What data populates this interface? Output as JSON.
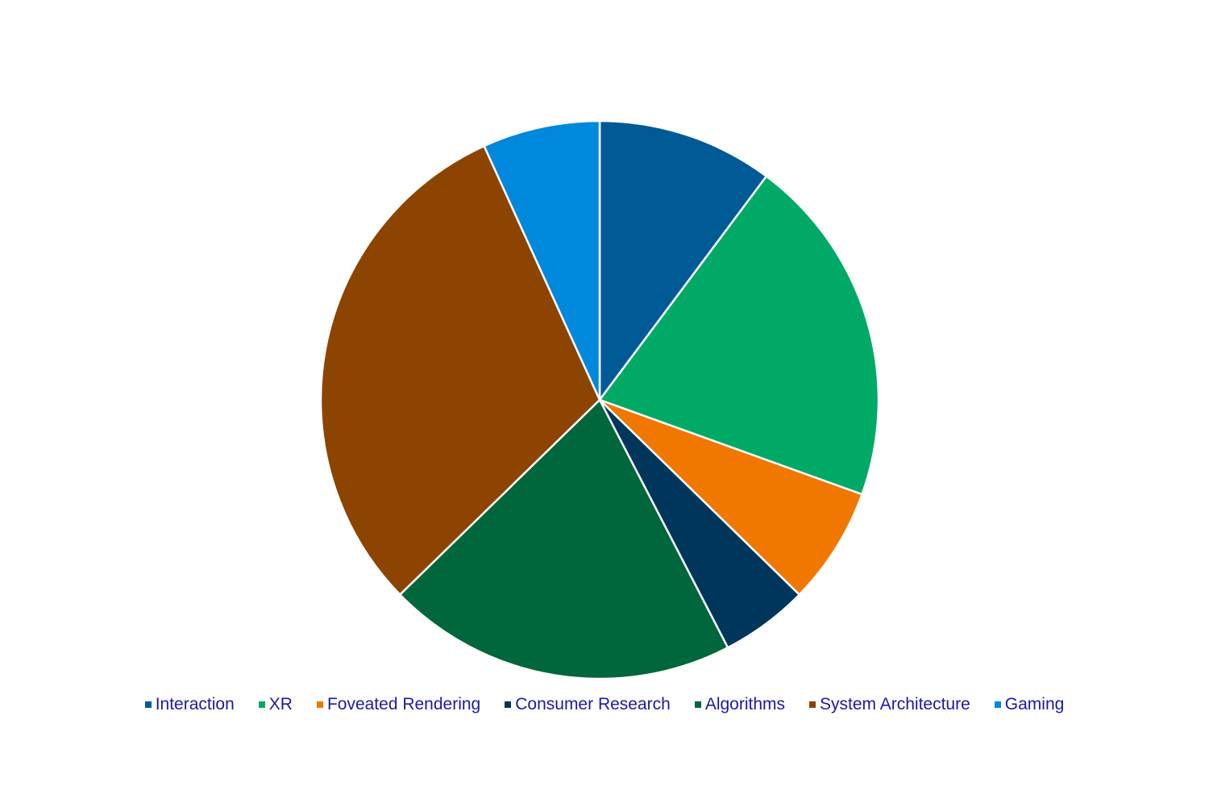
{
  "chart_data": {
    "type": "pie",
    "title": "",
    "start_angle_deg": 0,
    "direction": "clockwise",
    "legend_position": "bottom",
    "slices": [
      {
        "label": "Interaction",
        "value": 10.2,
        "color": "#005a96"
      },
      {
        "label": "XR",
        "value": 20.3,
        "color": "#00aa66"
      },
      {
        "label": "Foveated Rendering",
        "value": 6.8,
        "color": "#f07800"
      },
      {
        "label": "Consumer Research",
        "value": 5.1,
        "color": "#00365c"
      },
      {
        "label": "Algorithms",
        "value": 20.3,
        "color": "#00663c"
      },
      {
        "label": "System Architecture",
        "value": 30.5,
        "color": "#8c4400"
      },
      {
        "label": "Gaming",
        "value": 6.8,
        "color": "#0088dd"
      }
    ]
  }
}
